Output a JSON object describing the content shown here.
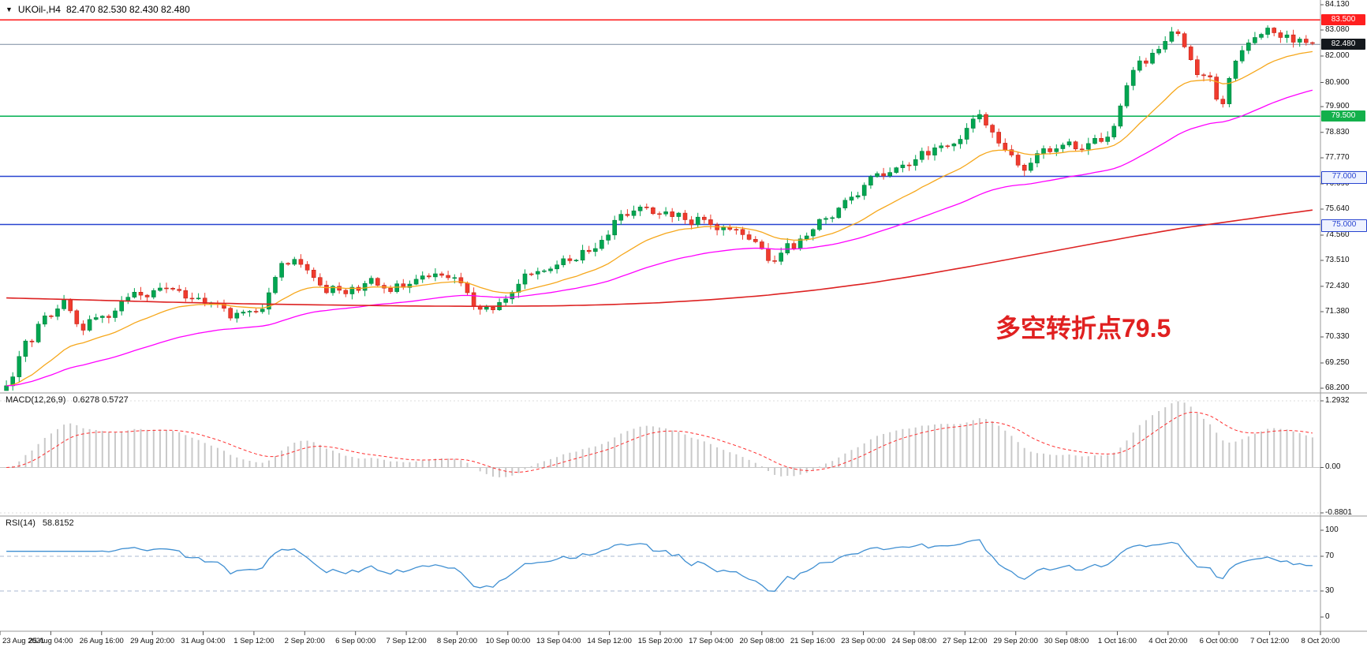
{
  "header": {
    "symbol": "UKOil-,H4",
    "ohlc": "82.470 82.530 82.430 82.480"
  },
  "macd": {
    "label": "MACD(12,26,9)",
    "values": "0.6278 0.5727"
  },
  "rsi": {
    "label": "RSI(14)",
    "value": "58.8152"
  },
  "main_chart": {
    "annotation": {
      "text": "多空转折点79.5",
      "color": "#e02020"
    }
  },
  "axes": {
    "price_labels": [
      "84.130",
      "83.080",
      "82.000",
      "80.900",
      "79.900",
      "78.830",
      "77.770",
      "76.690",
      "75.640",
      "74.560",
      "73.510",
      "72.430",
      "71.380",
      "70.330",
      "69.250",
      "68.200"
    ],
    "macd_labels": [
      "1.2932",
      "0.00",
      "-0.8801"
    ],
    "rsi_labels": [
      "100",
      "70",
      "30",
      "0"
    ],
    "date_labels": [
      "23 Aug 2021",
      "25 Aug 04:00",
      "26 Aug 16:00",
      "29 Aug 20:00",
      "31 Aug 04:00",
      "1 Sep 12:00",
      "2 Sep 20:00",
      "6 Sep 00:00",
      "7 Sep 12:00",
      "8 Sep 20:00",
      "10 Sep 00:00",
      "13 Sep 04:00",
      "14 Sep 12:00",
      "15 Sep 20:00",
      "17 Sep 04:00",
      "20 Sep 08:00",
      "21 Sep 16:00",
      "23 Sep 00:00",
      "24 Sep 08:00",
      "27 Sep 12:00",
      "29 Sep 20:00",
      "30 Sep 08:00",
      "1 Oct 16:00",
      "4 Oct 20:00",
      "6 Oct 00:00",
      "7 Oct 12:00",
      "8 Oct 20:00"
    ]
  },
  "chart_data": {
    "type": "candlestick",
    "symbol": "UKOil-",
    "timeframe": "H4",
    "bars": 205,
    "price_axis_max": 84.13,
    "price_axis_min": 68.2,
    "current_price": 82.48,
    "hlines": [
      {
        "price": 83.5,
        "tag": "83.500",
        "color": "#ff0000",
        "tag_bg": "#ff1f1f",
        "tag_fg": "#ffffff",
        "width": 1.3
      },
      {
        "price": 82.48,
        "tag": "82.480",
        "color": "#7a8aa0",
        "tag_bg": "#14181d",
        "tag_fg": "#ffffff",
        "width": 1
      },
      {
        "price": 79.5,
        "tag": "79.500",
        "color": "#00b050",
        "tag_bg": "#13b04b",
        "tag_fg": "#ffffff",
        "width": 1.5
      },
      {
        "price": 77.0,
        "tag": "77.000",
        "color": "#2743d0",
        "tag_bg": "#eef2ff",
        "tag_fg": "#2743d0",
        "tag_border": "#2743d0",
        "width": 1.5
      },
      {
        "price": 75.0,
        "tag": "75.000",
        "color": "#2743d0",
        "tag_bg": "#eef2ff",
        "tag_fg": "#2743d0",
        "tag_border": "#2743d0",
        "width": 1.5
      }
    ],
    "ma_fast_period": 20,
    "ma_slow_period": 55,
    "macd_params": [
      12,
      26,
      9
    ],
    "macd_scale": [
      1.2932,
      -0.8801
    ],
    "rsi_period": 14,
    "rsi_levels": [
      70,
      30
    ],
    "price_path": [
      [
        0.0,
        68.25
      ],
      [
        0.004,
        68.6
      ],
      [
        0.008,
        69.2
      ],
      [
        0.012,
        69.8
      ],
      [
        0.016,
        70.3
      ],
      [
        0.02,
        70.05
      ],
      [
        0.024,
        70.8
      ],
      [
        0.028,
        71.2
      ],
      [
        0.032,
        71.0
      ],
      [
        0.038,
        71.3
      ],
      [
        0.043,
        71.9
      ],
      [
        0.048,
        71.5
      ],
      [
        0.053,
        70.9
      ],
      [
        0.058,
        70.6
      ],
      [
        0.063,
        70.95
      ],
      [
        0.068,
        71.2
      ],
      [
        0.077,
        71.1
      ],
      [
        0.082,
        71.4
      ],
      [
        0.087,
        71.7
      ],
      [
        0.092,
        72.0
      ],
      [
        0.1,
        72.2
      ],
      [
        0.108,
        72.0
      ],
      [
        0.115,
        72.3
      ],
      [
        0.12,
        72.5
      ],
      [
        0.125,
        72.2
      ],
      [
        0.13,
        72.4
      ],
      [
        0.135,
        72.1
      ],
      [
        0.14,
        71.9
      ],
      [
        0.145,
        72.1
      ],
      [
        0.15,
        71.8
      ],
      [
        0.154,
        71.6
      ],
      [
        0.158,
        71.9
      ],
      [
        0.163,
        71.7
      ],
      [
        0.168,
        71.4
      ],
      [
        0.173,
        71.1
      ],
      [
        0.178,
        71.3
      ],
      [
        0.183,
        71.5
      ],
      [
        0.192,
        71.3
      ],
      [
        0.197,
        71.6
      ],
      [
        0.202,
        72.3
      ],
      [
        0.207,
        73.0
      ],
      [
        0.212,
        73.5
      ],
      [
        0.217,
        73.3
      ],
      [
        0.222,
        73.6
      ],
      [
        0.227,
        73.2
      ],
      [
        0.231,
        73.1
      ],
      [
        0.236,
        72.8
      ],
      [
        0.241,
        72.4
      ],
      [
        0.246,
        72.2
      ],
      [
        0.251,
        72.5
      ],
      [
        0.256,
        72.3
      ],
      [
        0.261,
        72.1
      ],
      [
        0.266,
        72.4
      ],
      [
        0.27,
        72.3
      ],
      [
        0.274,
        72.6
      ],
      [
        0.279,
        72.8
      ],
      [
        0.284,
        72.5
      ],
      [
        0.289,
        72.3
      ],
      [
        0.294,
        72.2
      ],
      [
        0.299,
        72.5
      ],
      [
        0.307,
        72.4
      ],
      [
        0.312,
        72.6
      ],
      [
        0.317,
        72.9
      ],
      [
        0.322,
        72.7
      ],
      [
        0.327,
        72.9
      ],
      [
        0.332,
        73.0
      ],
      [
        0.337,
        72.8
      ],
      [
        0.346,
        72.7
      ],
      [
        0.351,
        72.3
      ],
      [
        0.356,
        71.8
      ],
      [
        0.361,
        71.5
      ],
      [
        0.366,
        71.6
      ],
      [
        0.371,
        71.4
      ],
      [
        0.376,
        71.7
      ],
      [
        0.385,
        71.9
      ],
      [
        0.389,
        72.3
      ],
      [
        0.394,
        72.7
      ],
      [
        0.399,
        73.0
      ],
      [
        0.404,
        72.8
      ],
      [
        0.409,
        73.1
      ],
      [
        0.414,
        73.2
      ],
      [
        0.423,
        73.3
      ],
      [
        0.428,
        73.6
      ],
      [
        0.433,
        73.4
      ],
      [
        0.438,
        73.7
      ],
      [
        0.443,
        74.0
      ],
      [
        0.448,
        73.8
      ],
      [
        0.453,
        74.2
      ],
      [
        0.461,
        74.5
      ],
      [
        0.466,
        75.2
      ],
      [
        0.471,
        75.5
      ],
      [
        0.476,
        75.3
      ],
      [
        0.481,
        75.6
      ],
      [
        0.486,
        75.8
      ],
      [
        0.491,
        75.6
      ],
      [
        0.5,
        75.4
      ],
      [
        0.505,
        75.6
      ],
      [
        0.51,
        75.3
      ],
      [
        0.515,
        75.5
      ],
      [
        0.52,
        75.2
      ],
      [
        0.525,
        75.0
      ],
      [
        0.53,
        75.3
      ],
      [
        0.538,
        75.1
      ],
      [
        0.543,
        74.8
      ],
      [
        0.548,
        75.0
      ],
      [
        0.553,
        74.7
      ],
      [
        0.558,
        74.9
      ],
      [
        0.563,
        74.6
      ],
      [
        0.568,
        74.4
      ],
      [
        0.577,
        74.2
      ],
      [
        0.582,
        73.6
      ],
      [
        0.587,
        73.3
      ],
      [
        0.592,
        73.8
      ],
      [
        0.597,
        74.2
      ],
      [
        0.602,
        74.0
      ],
      [
        0.607,
        74.4
      ],
      [
        0.615,
        74.6
      ],
      [
        0.62,
        75.0
      ],
      [
        0.625,
        75.3
      ],
      [
        0.63,
        75.1
      ],
      [
        0.635,
        75.5
      ],
      [
        0.64,
        75.8
      ],
      [
        0.645,
        76.1
      ],
      [
        0.654,
        76.3
      ],
      [
        0.658,
        76.7
      ],
      [
        0.663,
        77.0
      ],
      [
        0.668,
        77.2
      ],
      [
        0.673,
        77.0
      ],
      [
        0.678,
        77.3
      ],
      [
        0.683,
        77.5
      ],
      [
        0.692,
        77.4
      ],
      [
        0.697,
        77.8
      ],
      [
        0.702,
        78.1
      ],
      [
        0.707,
        77.9
      ],
      [
        0.712,
        78.2
      ],
      [
        0.717,
        78.4
      ],
      [
        0.722,
        78.2
      ],
      [
        0.731,
        78.6
      ],
      [
        0.735,
        79.0
      ],
      [
        0.74,
        79.4
      ],
      [
        0.745,
        79.6
      ],
      [
        0.75,
        79.2
      ],
      [
        0.755,
        78.8
      ],
      [
        0.76,
        78.4
      ],
      [
        0.769,
        77.9
      ],
      [
        0.774,
        77.5
      ],
      [
        0.779,
        77.3
      ],
      [
        0.784,
        77.6
      ],
      [
        0.789,
        77.9
      ],
      [
        0.794,
        78.2
      ],
      [
        0.799,
        78.0
      ],
      [
        0.808,
        78.3
      ],
      [
        0.812,
        78.6
      ],
      [
        0.817,
        78.3
      ],
      [
        0.822,
        78.0
      ],
      [
        0.827,
        78.3
      ],
      [
        0.832,
        78.6
      ],
      [
        0.837,
        78.4
      ],
      [
        0.846,
        78.8
      ],
      [
        0.851,
        79.5
      ],
      [
        0.856,
        80.5
      ],
      [
        0.861,
        81.3
      ],
      [
        0.866,
        81.8
      ],
      [
        0.871,
        81.6
      ],
      [
        0.876,
        82.0
      ],
      [
        0.885,
        82.4
      ],
      [
        0.889,
        82.9
      ],
      [
        0.894,
        83.2
      ],
      [
        0.899,
        82.7
      ],
      [
        0.904,
        82.2
      ],
      [
        0.909,
        81.5
      ],
      [
        0.914,
        81.0
      ],
      [
        0.918,
        81.3
      ],
      [
        0.923,
        81.1
      ],
      [
        0.926,
        80.2
      ],
      [
        0.93,
        79.7
      ],
      [
        0.934,
        80.6
      ],
      [
        0.938,
        81.4
      ],
      [
        0.943,
        82.0
      ],
      [
        0.948,
        82.3
      ],
      [
        0.953,
        82.6
      ],
      [
        0.961,
        82.9
      ],
      [
        0.966,
        83.2
      ],
      [
        0.971,
        83.0
      ],
      [
        0.976,
        82.7
      ],
      [
        0.981,
        82.9
      ],
      [
        0.986,
        82.5
      ],
      [
        0.991,
        82.7
      ],
      [
        1.0,
        82.48
      ]
    ],
    "long_ma_path": [
      [
        0.0,
        71.95
      ],
      [
        0.06,
        71.87
      ],
      [
        0.12,
        71.78
      ],
      [
        0.18,
        71.71
      ],
      [
        0.24,
        71.66
      ],
      [
        0.3,
        71.62
      ],
      [
        0.36,
        71.6
      ],
      [
        0.42,
        71.62
      ],
      [
        0.46,
        71.67
      ],
      [
        0.5,
        71.75
      ],
      [
        0.54,
        71.88
      ],
      [
        0.58,
        72.05
      ],
      [
        0.62,
        72.28
      ],
      [
        0.66,
        72.56
      ],
      [
        0.7,
        72.9
      ],
      [
        0.74,
        73.28
      ],
      [
        0.78,
        73.68
      ],
      [
        0.82,
        74.08
      ],
      [
        0.86,
        74.48
      ],
      [
        0.9,
        74.85
      ],
      [
        0.94,
        75.15
      ],
      [
        0.97,
        75.38
      ],
      [
        1.0,
        75.6
      ]
    ],
    "style": {
      "up": "#00a651",
      "up_stroke": "#00813e",
      "down": "#f03b2e",
      "down_stroke": "#c32619",
      "ma_fast": "#f6a71b",
      "ma_slow": "#ff00ff",
      "ma_long": "#dd2222",
      "hist": "#c9c9c9",
      "signal": "#ff2f2f",
      "rsi_line": "#3f8fd2",
      "level_dash": "#a9bad2",
      "grid": "#c8c8c8",
      "separator": "#9a9a9a",
      "axis_text": "#1a1a1a"
    }
  }
}
